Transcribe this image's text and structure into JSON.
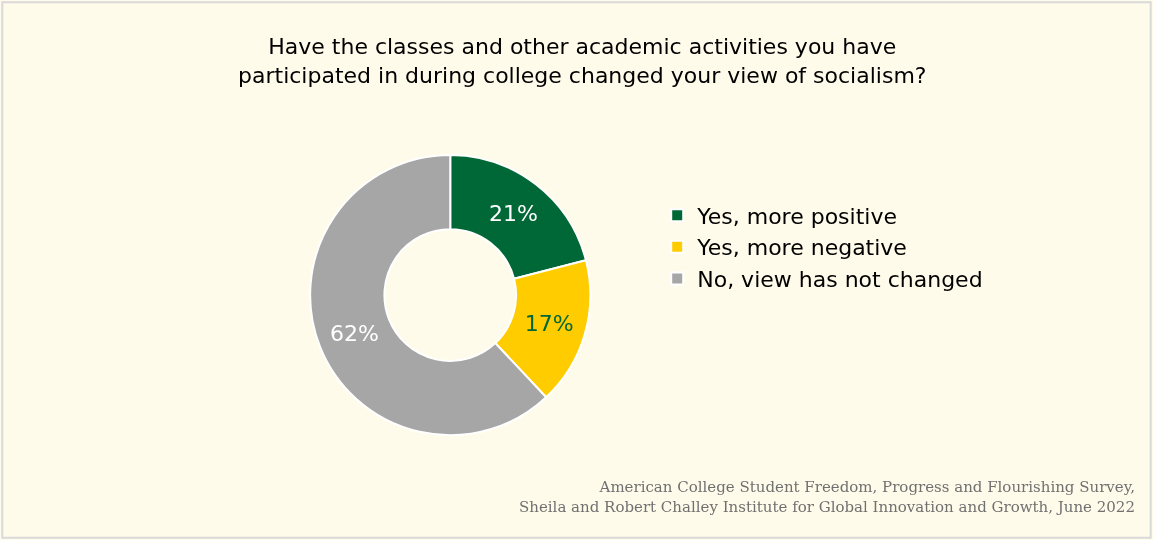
{
  "chart_data": {
    "type": "donut",
    "title": "Have the classes and other academic activities you have\nparticipated in during college changed your view of socialism?",
    "categories": [
      "Yes, more positive",
      "Yes, more negative",
      "No, view has not changed"
    ],
    "values": [
      21,
      17,
      62
    ],
    "colors": [
      "#006837",
      "#ffcc00",
      "#a6a6a6"
    ],
    "value_labels": [
      "21%",
      "17%",
      "62%"
    ],
    "legend": "right",
    "annotations": [
      "American College Student Freedom, Progress and Flourishing Survey,\nSheila and Robert Challey Institute for Global Innovation and Growth, June 2022"
    ]
  }
}
